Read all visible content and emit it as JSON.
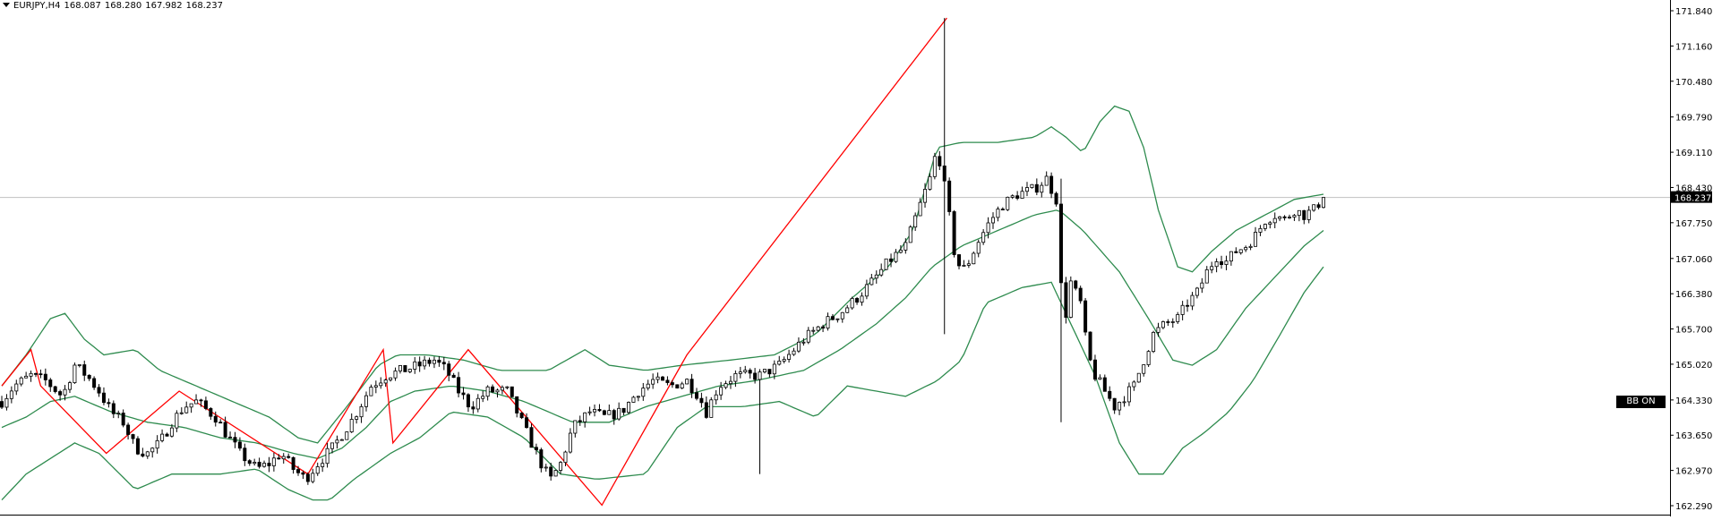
{
  "header": {
    "symbol": "EURJPY,H4",
    "open": "168.087",
    "high": "168.280",
    "low": "167.982",
    "close": "168.237"
  },
  "indicator_badge": "BB ON",
  "colors": {
    "bands": "#2e8b4e",
    "zigzag": "#ff0000",
    "candle_outline": "#000000",
    "price_line": "#c0c0c0",
    "price_label_bg": "#000000"
  },
  "chart_data": {
    "type": "candlestick",
    "symbol": "EURJPY",
    "timeframe": "H4",
    "y_ticks": [
      "171.840",
      "171.160",
      "170.480",
      "169.790",
      "169.110",
      "168.430",
      "167.750",
      "167.060",
      "166.380",
      "165.700",
      "165.020",
      "164.330",
      "163.650",
      "162.970",
      "162.290"
    ],
    "ylim": [
      162.1,
      172.0
    ],
    "current_price": "168.237",
    "grid": false,
    "bar_count": 245,
    "close_anchors": [
      [
        0,
        164.3
      ],
      [
        5,
        164.6
      ],
      [
        12,
        164.8
      ],
      [
        18,
        164.7
      ],
      [
        25,
        164.4
      ],
      [
        30,
        165.0
      ],
      [
        35,
        164.8
      ],
      [
        40,
        164.5
      ],
      [
        45,
        164.1
      ],
      [
        50,
        163.9
      ],
      [
        55,
        163.4
      ],
      [
        60,
        163.3
      ],
      [
        65,
        163.5
      ],
      [
        70,
        163.9
      ],
      [
        75,
        164.2
      ],
      [
        80,
        164.3
      ],
      [
        88,
        164.0
      ],
      [
        92,
        163.7
      ],
      [
        98,
        163.3
      ],
      [
        105,
        163.0
      ],
      [
        110,
        163.1
      ],
      [
        115,
        163.3
      ],
      [
        120,
        163.0
      ],
      [
        125,
        162.8
      ],
      [
        130,
        163.1
      ],
      [
        136,
        163.4
      ],
      [
        145,
        164.0
      ],
      [
        152,
        164.6
      ],
      [
        158,
        164.8
      ],
      [
        165,
        164.9
      ],
      [
        172,
        165.0
      ],
      [
        178,
        165.1
      ],
      [
        183,
        164.9
      ],
      [
        188,
        164.5
      ],
      [
        193,
        164.2
      ],
      [
        200,
        164.5
      ],
      [
        208,
        164.5
      ],
      [
        213,
        164.0
      ],
      [
        218,
        163.5
      ],
      [
        223,
        163.0
      ],
      [
        226,
        162.8
      ],
      [
        230,
        163.1
      ],
      [
        235,
        163.8
      ],
      [
        242,
        164.1
      ],
      [
        248,
        164.0
      ],
      [
        255,
        164.1
      ],
      [
        262,
        164.5
      ],
      [
        268,
        164.7
      ],
      [
        275,
        164.6
      ],
      [
        282,
        164.7
      ],
      [
        287,
        164.4
      ],
      [
        290,
        164.1
      ],
      [
        295,
        164.6
      ],
      [
        302,
        164.8
      ],
      [
        312,
        164.8
      ],
      [
        320,
        165.0
      ],
      [
        330,
        165.5
      ],
      [
        338,
        165.8
      ],
      [
        345,
        166.0
      ],
      [
        352,
        166.3
      ],
      [
        358,
        166.6
      ],
      [
        365,
        167.0
      ],
      [
        372,
        167.3
      ],
      [
        378,
        168.1
      ],
      [
        382,
        168.6
      ],
      [
        385,
        169.2
      ],
      [
        389,
        168.2
      ],
      [
        392,
        167.2
      ],
      [
        395,
        166.8
      ],
      [
        398,
        167.0
      ],
      [
        402,
        167.4
      ],
      [
        407,
        167.8
      ],
      [
        412,
        168.1
      ],
      [
        418,
        168.3
      ],
      [
        425,
        168.4
      ],
      [
        430,
        168.6
      ],
      [
        434,
        168.2
      ],
      [
        437,
        165.7
      ],
      [
        440,
        166.6
      ],
      [
        444,
        166.2
      ],
      [
        447,
        165.2
      ],
      [
        450,
        164.8
      ],
      [
        454,
        164.5
      ],
      [
        458,
        164.2
      ],
      [
        462,
        164.4
      ],
      [
        466,
        164.6
      ],
      [
        470,
        165.1
      ],
      [
        474,
        165.6
      ],
      [
        479,
        165.8
      ],
      [
        484,
        165.9
      ],
      [
        488,
        166.2
      ],
      [
        492,
        166.4
      ],
      [
        496,
        166.8
      ],
      [
        500,
        167.1
      ],
      [
        504,
        167.0
      ],
      [
        508,
        167.2
      ],
      [
        512,
        167.3
      ],
      [
        516,
        167.5
      ],
      [
        520,
        167.8
      ],
      [
        524,
        167.9
      ],
      [
        528,
        167.8
      ],
      [
        532,
        168.0
      ],
      [
        536,
        167.9
      ],
      [
        540,
        168.0
      ],
      [
        544,
        168.237
      ]
    ],
    "extreme_bars": [
      {
        "bar": 389,
        "high": 171.7,
        "low": 165.6
      },
      {
        "bar": 437,
        "high": 168.6,
        "low": 163.9
      },
      {
        "bar": 312,
        "high": 164.9,
        "low": 162.9
      }
    ],
    "zigzag": [
      [
        164.6,
        0
      ],
      [
        165.3,
        12
      ],
      [
        164.6,
        16
      ],
      [
        163.3,
        43
      ],
      [
        164.5,
        73
      ],
      [
        162.9,
        126
      ],
      [
        165.3,
        157
      ],
      [
        163.5,
        161
      ],
      [
        165.3,
        192
      ],
      [
        162.3,
        247
      ],
      [
        165.2,
        282
      ],
      [
        171.7,
        389
      ]
    ],
    "bollinger_upper": [
      [
        0,
        164.6
      ],
      [
        10,
        165.2
      ],
      [
        20,
        165.9
      ],
      [
        26,
        166.0
      ],
      [
        34,
        165.5
      ],
      [
        42,
        165.2
      ],
      [
        55,
        165.3
      ],
      [
        65,
        164.9
      ],
      [
        80,
        164.6
      ],
      [
        95,
        164.3
      ],
      [
        110,
        164.0
      ],
      [
        122,
        163.6
      ],
      [
        130,
        163.5
      ],
      [
        142,
        164.2
      ],
      [
        155,
        165.0
      ],
      [
        163,
        165.2
      ],
      [
        175,
        165.2
      ],
      [
        190,
        165.1
      ],
      [
        205,
        164.9
      ],
      [
        225,
        164.9
      ],
      [
        240,
        165.3
      ],
      [
        250,
        165.0
      ],
      [
        265,
        164.9
      ],
      [
        280,
        165.0
      ],
      [
        300,
        165.1
      ],
      [
        318,
        165.2
      ],
      [
        335,
        165.6
      ],
      [
        350,
        166.3
      ],
      [
        365,
        166.9
      ],
      [
        375,
        167.6
      ],
      [
        385,
        169.2
      ],
      [
        395,
        169.3
      ],
      [
        410,
        169.3
      ],
      [
        425,
        169.4
      ],
      [
        432,
        169.6
      ],
      [
        438,
        169.4
      ],
      [
        445,
        169.1
      ],
      [
        452,
        169.7
      ],
      [
        458,
        170.0
      ],
      [
        464,
        169.9
      ],
      [
        470,
        169.2
      ],
      [
        476,
        168.0
      ],
      [
        484,
        166.9
      ],
      [
        490,
        166.8
      ],
      [
        498,
        167.2
      ],
      [
        508,
        167.6
      ],
      [
        520,
        167.9
      ],
      [
        532,
        168.2
      ],
      [
        544,
        168.3
      ]
    ],
    "bollinger_middle": [
      [
        0,
        163.8
      ],
      [
        10,
        164.0
      ],
      [
        20,
        164.3
      ],
      [
        30,
        164.4
      ],
      [
        45,
        164.1
      ],
      [
        60,
        163.9
      ],
      [
        75,
        163.8
      ],
      [
        90,
        163.6
      ],
      [
        105,
        163.5
      ],
      [
        120,
        163.3
      ],
      [
        130,
        163.2
      ],
      [
        140,
        163.4
      ],
      [
        150,
        163.8
      ],
      [
        160,
        164.3
      ],
      [
        170,
        164.5
      ],
      [
        185,
        164.6
      ],
      [
        200,
        164.5
      ],
      [
        215,
        164.3
      ],
      [
        235,
        163.9
      ],
      [
        250,
        163.9
      ],
      [
        265,
        164.2
      ],
      [
        280,
        164.4
      ],
      [
        295,
        164.6
      ],
      [
        310,
        164.7
      ],
      [
        330,
        164.9
      ],
      [
        345,
        165.3
      ],
      [
        360,
        165.8
      ],
      [
        372,
        166.3
      ],
      [
        383,
        166.9
      ],
      [
        395,
        167.3
      ],
      [
        410,
        167.6
      ],
      [
        425,
        167.9
      ],
      [
        435,
        168.0
      ],
      [
        445,
        167.6
      ],
      [
        460,
        166.8
      ],
      [
        472,
        165.9
      ],
      [
        482,
        165.1
      ],
      [
        490,
        165.0
      ],
      [
        500,
        165.3
      ],
      [
        512,
        166.1
      ],
      [
        524,
        166.7
      ],
      [
        536,
        167.3
      ],
      [
        544,
        167.6
      ]
    ],
    "bollinger_lower": [
      [
        0,
        162.4
      ],
      [
        10,
        162.9
      ],
      [
        20,
        163.2
      ],
      [
        30,
        163.5
      ],
      [
        40,
        163.3
      ],
      [
        55,
        162.6
      ],
      [
        70,
        162.9
      ],
      [
        90,
        162.9
      ],
      [
        105,
        163.0
      ],
      [
        118,
        162.6
      ],
      [
        128,
        162.4
      ],
      [
        135,
        162.4
      ],
      [
        145,
        162.8
      ],
      [
        160,
        163.3
      ],
      [
        172,
        163.6
      ],
      [
        185,
        164.1
      ],
      [
        200,
        164.0
      ],
      [
        215,
        163.6
      ],
      [
        230,
        162.9
      ],
      [
        245,
        162.8
      ],
      [
        265,
        162.9
      ],
      [
        278,
        163.8
      ],
      [
        290,
        164.2
      ],
      [
        305,
        164.2
      ],
      [
        320,
        164.3
      ],
      [
        335,
        164.0
      ],
      [
        348,
        164.6
      ],
      [
        360,
        164.5
      ],
      [
        372,
        164.4
      ],
      [
        385,
        164.7
      ],
      [
        395,
        165.1
      ],
      [
        405,
        166.2
      ],
      [
        420,
        166.5
      ],
      [
        432,
        166.6
      ],
      [
        440,
        165.8
      ],
      [
        450,
        164.8
      ],
      [
        460,
        163.5
      ],
      [
        468,
        162.9
      ],
      [
        478,
        162.9
      ],
      [
        486,
        163.4
      ],
      [
        495,
        163.7
      ],
      [
        505,
        164.1
      ],
      [
        515,
        164.7
      ],
      [
        525,
        165.5
      ],
      [
        536,
        166.4
      ],
      [
        544,
        166.9
      ]
    ]
  }
}
